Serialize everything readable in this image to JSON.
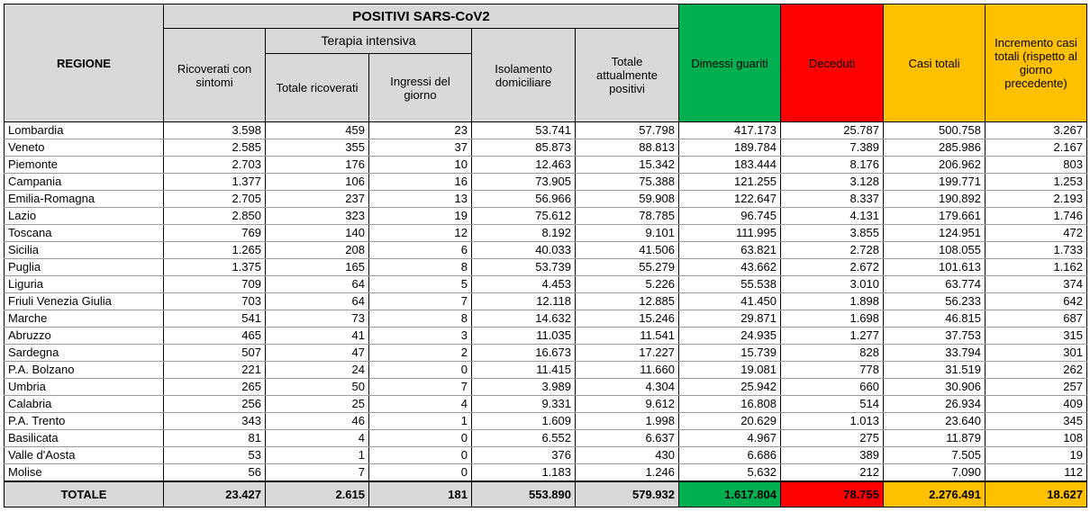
{
  "header": {
    "title": "POSITIVI SARS-CoV2",
    "regione": "REGIONE",
    "ricoverati": "Ricoverati con sintomi",
    "terapia": "Terapia intensiva",
    "totale_ricoverati": "Totale ricoverati",
    "ingressi": "Ingressi del giorno",
    "isolamento": "Isolamento domiciliare",
    "totale_positivi": "Totale attualmente positivi",
    "dimessi": "Dimessi guariti",
    "deceduti": "Deceduti",
    "casi": "Casi totali",
    "incremento": "Incremento casi totali (rispetto al giorno precedente)"
  },
  "colors": {
    "gray": "#d9d9d9",
    "green": "#00b050",
    "red": "#ff0000",
    "orange": "#ffc000"
  },
  "rows": [
    [
      "Lombardia",
      "3.598",
      "459",
      "23",
      "53.741",
      "57.798",
      "417.173",
      "25.787",
      "500.758",
      "3.267"
    ],
    [
      "Veneto",
      "2.585",
      "355",
      "37",
      "85.873",
      "88.813",
      "189.784",
      "7.389",
      "285.986",
      "2.167"
    ],
    [
      "Piemonte",
      "2.703",
      "176",
      "10",
      "12.463",
      "15.342",
      "183.444",
      "8.176",
      "206.962",
      "803"
    ],
    [
      "Campania",
      "1.377",
      "106",
      "16",
      "73.905",
      "75.388",
      "121.255",
      "3.128",
      "199.771",
      "1.253"
    ],
    [
      "Emilia-Romagna",
      "2.705",
      "237",
      "13",
      "56.966",
      "59.908",
      "122.647",
      "8.337",
      "190.892",
      "2.193"
    ],
    [
      "Lazio",
      "2.850",
      "323",
      "19",
      "75.612",
      "78.785",
      "96.745",
      "4.131",
      "179.661",
      "1.746"
    ],
    [
      "Toscana",
      "769",
      "140",
      "12",
      "8.192",
      "9.101",
      "111.995",
      "3.855",
      "124.951",
      "472"
    ],
    [
      "Sicilia",
      "1.265",
      "208",
      "6",
      "40.033",
      "41.506",
      "63.821",
      "2.728",
      "108.055",
      "1.733"
    ],
    [
      "Puglia",
      "1.375",
      "165",
      "8",
      "53.739",
      "55.279",
      "43.662",
      "2.672",
      "101.613",
      "1.162"
    ],
    [
      "Liguria",
      "709",
      "64",
      "5",
      "4.453",
      "5.226",
      "55.538",
      "3.010",
      "63.774",
      "374"
    ],
    [
      "Friuli Venezia Giulia",
      "703",
      "64",
      "7",
      "12.118",
      "12.885",
      "41.450",
      "1.898",
      "56.233",
      "642"
    ],
    [
      "Marche",
      "541",
      "73",
      "8",
      "14.632",
      "15.246",
      "29.871",
      "1.698",
      "46.815",
      "687"
    ],
    [
      "Abruzzo",
      "465",
      "41",
      "3",
      "11.035",
      "11.541",
      "24.935",
      "1.277",
      "37.753",
      "315"
    ],
    [
      "Sardegna",
      "507",
      "47",
      "2",
      "16.673",
      "17.227",
      "15.739",
      "828",
      "33.794",
      "301"
    ],
    [
      "P.A. Bolzano",
      "221",
      "24",
      "0",
      "11.415",
      "11.660",
      "19.081",
      "778",
      "31.519",
      "262"
    ],
    [
      "Umbria",
      "265",
      "50",
      "7",
      "3.989",
      "4.304",
      "25.942",
      "660",
      "30.906",
      "257"
    ],
    [
      "Calabria",
      "256",
      "25",
      "4",
      "9.331",
      "9.612",
      "16.808",
      "514",
      "26.934",
      "409"
    ],
    [
      "P.A. Trento",
      "343",
      "46",
      "1",
      "1.609",
      "1.998",
      "20.629",
      "1.013",
      "23.640",
      "345"
    ],
    [
      "Basilicata",
      "81",
      "4",
      "0",
      "6.552",
      "6.637",
      "4.967",
      "275",
      "11.879",
      "108"
    ],
    [
      "Valle d'Aosta",
      "53",
      "1",
      "0",
      "376",
      "430",
      "6.686",
      "389",
      "7.505",
      "19"
    ],
    [
      "Molise",
      "56",
      "7",
      "0",
      "1.183",
      "1.246",
      "5.632",
      "212",
      "7.090",
      "112"
    ]
  ],
  "totals": [
    "TOTALE",
    "23.427",
    "2.615",
    "181",
    "553.890",
    "579.932",
    "1.617.804",
    "78.755",
    "2.276.491",
    "18.627"
  ]
}
